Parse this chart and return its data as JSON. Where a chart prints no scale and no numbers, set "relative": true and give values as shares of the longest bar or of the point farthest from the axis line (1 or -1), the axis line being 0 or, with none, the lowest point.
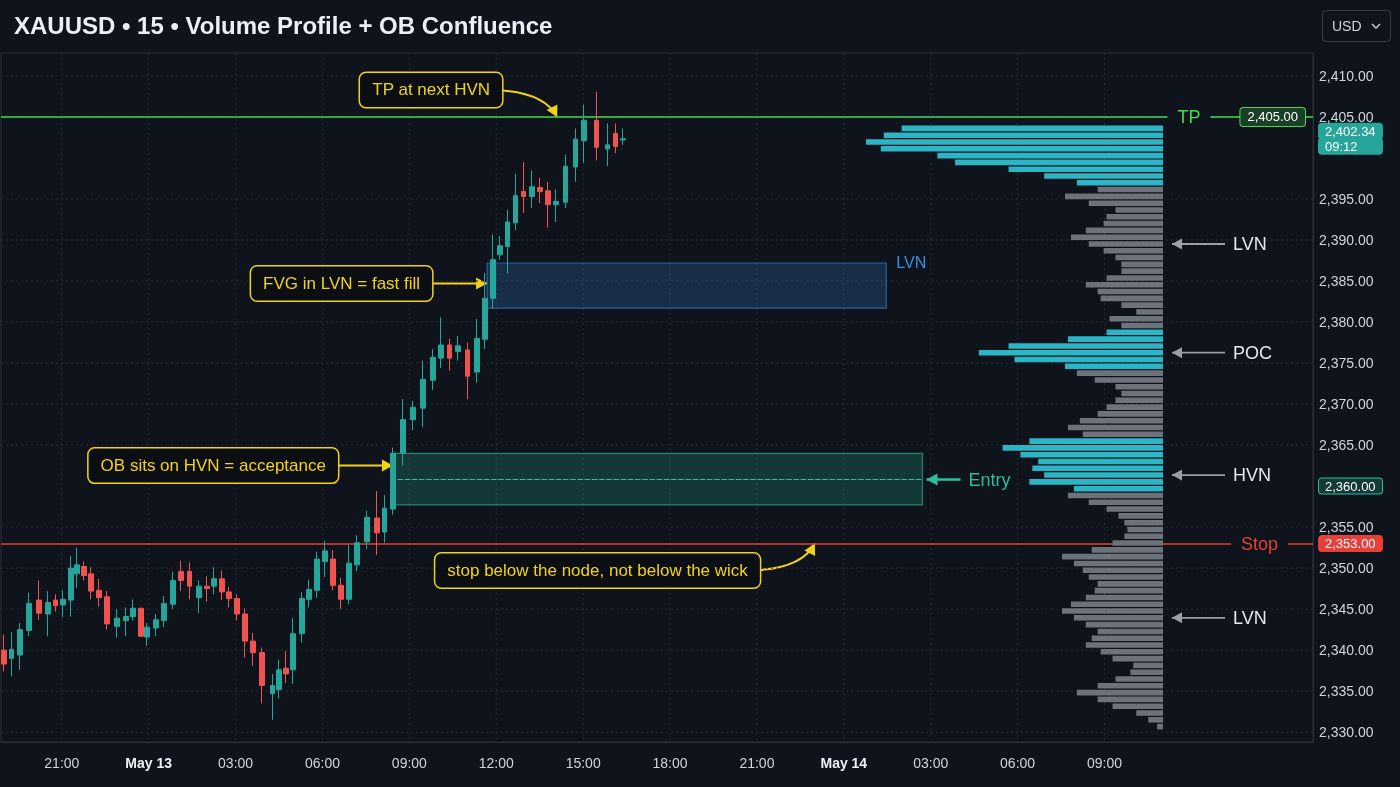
{
  "chart_data": [
    {
      "type": "candlestick",
      "title": "XAUUSD • 15 • Volume Profile + OB Confluence",
      "ylabel": "USD",
      "x": [
        "--05-12T19:00",
        "--05-12T19:16",
        "--05-12T19:33",
        "--05-12T19:52",
        "--05-12T20:13",
        "--05-12T20:31",
        "--05-12T20:47",
        "--05-12T21:02",
        "--05-12T21:19",
        "--05-12T21:31",
        "--05-12T21:46",
        "--05-12T22:00",
        "--05-12T22:17",
        "--05-12T22:34",
        "--05-12T22:54",
        "--05-12T23:13",
        "--05-12T23:27",
        "--05-12T23:44",
        "--05-12T23:56",
        "--05-13T00:15",
        "--05-13T00:32",
        "--05-13T00:50",
        "--05-13T01:07",
        "--05-13T01:25",
        "--05-13T01:44",
        "--05-13T02:01",
        "--05-13T02:15",
        "--05-13T02:32",
        "--05-13T02:46",
        "--05-13T03:03",
        "--05-13T03:19",
        "--05-13T03:36",
        "--05-13T03:55",
        "--05-13T04:16",
        "--05-13T04:30",
        "--05-13T04:44",
        "--05-13T04:59",
        "--05-13T05:18",
        "--05-13T05:32",
        "--05-13T05:49",
        "--05-13T06:05",
        "--05-13T06:22",
        "--05-13T06:38",
        "--05-13T06:55",
        "--05-13T07:12",
        "--05-13T07:32",
        "--05-13T07:53",
        "--05-13T08:08",
        "--05-13T08:26",
        "--05-13T08:47",
        "--05-13T09:08",
        "--05-13T09:28",
        "--05-13T09:49",
        "--05-13T10:06",
        "--05-13T10:23",
        "--05-13T10:41",
        "--05-13T11:00",
        "--05-13T11:20",
        "--05-13T11:37",
        "--05-13T11:53",
        "--05-13T12:08",
        "--05-13T12:23",
        "--05-13T12:40",
        "--05-13T12:56",
        "--05-13T13:14",
        "--05-13T13:31",
        "--05-13T13:47",
        "--05-13T14:04",
        "--05-13T14:23",
        "--05-13T14:44",
        "--05-13T15:02",
        "--05-13T15:28",
        "--05-13T15:50",
        "--05-13T16:07",
        "--05-13T16:23"
      ],
      "ohlc": [
        [
          2340.0,
          2341.9,
          2337.4,
          2338.3
        ],
        [
          2339.0,
          2342.2,
          2336.8,
          2340.1
        ],
        [
          2339.4,
          2343.3,
          2337.6,
          2342.5
        ],
        [
          2342.4,
          2347.0,
          2341.7,
          2345.7
        ],
        [
          2346.1,
          2348.5,
          2343.7,
          2344.5
        ],
        [
          2344.4,
          2347.2,
          2341.7,
          2345.8
        ],
        [
          2346.1,
          2346.8,
          2344.7,
          2345.4
        ],
        [
          2345.5,
          2347.3,
          2344.0,
          2346.2
        ],
        [
          2346.1,
          2351.5,
          2344.1,
          2350.0
        ],
        [
          2349.3,
          2352.5,
          2347.6,
          2350.4
        ],
        [
          2350.2,
          2350.8,
          2348.5,
          2349.1
        ],
        [
          2349.3,
          2350.1,
          2346.2,
          2347.2
        ],
        [
          2347.3,
          2348.7,
          2345.3,
          2346.4
        ],
        [
          2346.5,
          2347.2,
          2342.5,
          2343.2
        ],
        [
          2342.9,
          2345.0,
          2341.5,
          2343.9
        ],
        [
          2343.6,
          2345.2,
          2341.7,
          2344.1
        ],
        [
          2344.1,
          2346.2,
          2343.6,
          2345.1
        ],
        [
          2345.1,
          2345.2,
          2341.6,
          2341.7
        ],
        [
          2341.6,
          2343.3,
          2340.5,
          2342.8
        ],
        [
          2342.7,
          2344.4,
          2341.7,
          2343.7
        ],
        [
          2343.6,
          2346.6,
          2342.8,
          2345.7
        ],
        [
          2345.6,
          2349.6,
          2345.0,
          2348.5
        ],
        [
          2349.6,
          2350.9,
          2347.2,
          2348.5
        ],
        [
          2349.6,
          2350.7,
          2346.2,
          2347.8
        ],
        [
          2346.4,
          2348.5,
          2344.5,
          2347.8
        ],
        [
          2347.8,
          2349.0,
          2345.9,
          2347.5
        ],
        [
          2347.8,
          2350.1,
          2346.8,
          2348.7
        ],
        [
          2348.7,
          2349.7,
          2346.1,
          2347.1
        ],
        [
          2347.1,
          2347.7,
          2345.2,
          2346.3
        ],
        [
          2346.3,
          2346.8,
          2343.6,
          2344.4
        ],
        [
          2344.4,
          2345.1,
          2339.1,
          2341.1
        ],
        [
          2341.1,
          2342.1,
          2338.1,
          2339.7
        ],
        [
          2339.7,
          2340.3,
          2333.5,
          2335.7
        ],
        [
          2334.7,
          2337.1,
          2331.5,
          2335.7
        ],
        [
          2335.2,
          2338.8,
          2334.1,
          2337.6
        ],
        [
          2337.8,
          2339.9,
          2336.0,
          2337.1
        ],
        [
          2337.6,
          2343.9,
          2335.9,
          2342.0
        ],
        [
          2342.0,
          2347.1,
          2340.9,
          2346.3
        ],
        [
          2346.2,
          2348.6,
          2345.2,
          2347.4
        ],
        [
          2347.3,
          2352.0,
          2346.4,
          2351.1
        ],
        [
          2350.8,
          2353.3,
          2348.9,
          2352.1
        ],
        [
          2351.1,
          2352.2,
          2347.3,
          2347.9
        ],
        [
          2347.9,
          2348.8,
          2345.0,
          2346.2
        ],
        [
          2346.2,
          2352.8,
          2345.6,
          2350.6
        ],
        [
          2350.4,
          2354.0,
          2349.6,
          2353.1
        ],
        [
          2353.2,
          2357.0,
          2352.3,
          2356.2
        ],
        [
          2356.1,
          2359.4,
          2351.6,
          2354.3
        ],
        [
          2354.4,
          2358.9,
          2353.1,
          2357.3
        ],
        [
          2357.2,
          2364.7,
          2356.5,
          2364.0
        ],
        [
          2364.0,
          2370.6,
          2362.5,
          2368.1
        ],
        [
          2368.1,
          2370.4,
          2366.8,
          2369.6
        ],
        [
          2369.5,
          2375.3,
          2367.2,
          2373.0
        ],
        [
          2372.9,
          2376.7,
          2371.7,
          2375.7
        ],
        [
          2375.6,
          2380.6,
          2374.4,
          2377.2
        ],
        [
          2377.2,
          2378.0,
          2374.1,
          2375.6
        ],
        [
          2376.4,
          2378.3,
          2375.3,
          2377.1
        ],
        [
          2376.6,
          2377.5,
          2370.6,
          2373.4
        ],
        [
          2373.9,
          2380.4,
          2372.6,
          2378.0
        ],
        [
          2377.9,
          2386.0,
          2376.7,
          2382.9
        ],
        [
          2382.9,
          2390.7,
          2381.6,
          2387.6
        ],
        [
          2388.2,
          2390.5,
          2387.6,
          2389.3
        ],
        [
          2389.2,
          2393.7,
          2385.9,
          2392.2
        ],
        [
          2392.1,
          2398.1,
          2391.2,
          2395.4
        ],
        [
          2395.9,
          2399.5,
          2393.3,
          2395.3
        ],
        [
          2395.3,
          2398.5,
          2393.9,
          2396.5
        ],
        [
          2396.4,
          2397.6,
          2394.5,
          2395.9
        ],
        [
          2396.0,
          2397.1,
          2391.5,
          2394.3
        ],
        [
          2394.3,
          2396.2,
          2392.2,
          2394.7
        ],
        [
          2394.6,
          2400.4,
          2393.9,
          2399.0
        ],
        [
          2398.9,
          2403.6,
          2397.1,
          2402.3
        ],
        [
          2402.1,
          2406.5,
          2399.4,
          2404.6
        ],
        [
          2404.6,
          2408.1,
          2399.7,
          2401.3
        ],
        [
          2401.1,
          2404.2,
          2399.0,
          2401.6
        ],
        [
          2403.0,
          2404.2,
          2400.6,
          2401.4
        ],
        [
          2402.2,
          2403.6,
          2401.6,
          2402.34
        ]
      ],
      "colors": [
        "#ef5350",
        "#26a69a",
        "#26a69a",
        "#26a69a",
        "#ef5350",
        "#26a69a",
        "#ef5350",
        "#26a69a",
        "#26a69a",
        "#26a69a",
        "#ef5350",
        "#ef5350",
        "#ef5350",
        "#ef5350",
        "#26a69a",
        "#26a69a",
        "#26a69a",
        "#ef5350",
        "#26a69a",
        "#26a69a",
        "#26a69a",
        "#26a69a",
        "#ef5350",
        "#ef5350",
        "#26a69a",
        "#ef5350",
        "#26a69a",
        "#ef5350",
        "#ef5350",
        "#ef5350",
        "#ef5350",
        "#ef5350",
        "#ef5350",
        "#26a69a",
        "#26a69a",
        "#ef5350",
        "#26a69a",
        "#26a69a",
        "#26a69a",
        "#26a69a",
        "#26a69a",
        "#ef5350",
        "#ef5350",
        "#26a69a",
        "#26a69a",
        "#26a69a",
        "#ef5350",
        "#26a69a",
        "#26a69a",
        "#26a69a",
        "#26a69a",
        "#26a69a",
        "#26a69a",
        "#26a69a",
        "#ef5350",
        "#26a69a",
        "#ef5350",
        "#26a69a",
        "#26a69a",
        "#26a69a",
        "#26a69a",
        "#26a69a",
        "#26a69a",
        "#ef5350",
        "#26a69a",
        "#ef5350",
        "#ef5350",
        "#26a69a",
        "#26a69a",
        "#26a69a",
        "#26a69a",
        "#ef5350",
        "#26a69a",
        "#ef5350",
        "#26a69a"
      ],
      "series": [
        {
          "type": "line",
          "name": "Entry",
          "x": [
            "--05-13T08:26",
            "--05-13T08:36",
            "--05-14T02:43"
          ],
          "values": [
            null,
            2360.8,
            2360.8
          ],
          "lower": [
            2357.7,
            2357.7,
            2357.7
          ],
          "upper": [
            2364.0,
            2364.0,
            2364.0
          ],
          "color": "#2bbf9e",
          "line_style": "dashed"
        },
        {
          "type": "line",
          "name": "LVN",
          "x": [
            "--05-13T11:41",
            "--05-14T01:28"
          ],
          "values": [
            null,
            null
          ],
          "lower": [
            2381.7,
            2381.7
          ],
          "upper": [
            2387.2,
            2387.2
          ],
          "color": "#3a8ee6"
        }
      ],
      "ref_lines": [
        {
          "axis": "y",
          "value": 2405,
          "label": "TP",
          "color": "#3fdc4f"
        },
        {
          "axis": "y",
          "value": 2353,
          "label": "Stop",
          "color": "#e5403a"
        }
      ],
      "annotations": [
        {
          "text": "TP at next HVN",
          "x": "--05-13T14:06",
          "y": 2405
        },
        {
          "text": "FVG in LVN = fast fill",
          "x": "--05-13T11:41",
          "y": 2384.7
        },
        {
          "text": "OB sits on HVN = acceptance",
          "x": "--05-13T08:26",
          "y": 2362.5
        },
        {
          "text": "stop below the node, not below the wick",
          "x": "--05-13T23:00",
          "y": 2353
        },
        {
          "text": "2,405.00",
          "y": 2405
        }
      ],
      "xlim": [
        "--05-12T18:54",
        "--05-14T16:12"
      ],
      "xticks": [
        {
          "value": "--05-12T21:00",
          "label": "21:00"
        },
        {
          "value": "--05-13T00:00",
          "label": "May 13"
        },
        {
          "value": "--05-13T03:00",
          "label": "03:00"
        },
        {
          "value": "--05-13T06:00",
          "label": "06:00"
        },
        {
          "value": "--05-13T09:00",
          "label": "09:00"
        },
        {
          "value": "--05-13T12:00",
          "label": "12:00"
        },
        {
          "value": "--05-13T15:00",
          "label": "15:00"
        },
        {
          "value": "--05-13T18:00",
          "label": "18:00"
        },
        {
          "value": "--05-13T21:00",
          "label": "21:00"
        },
        {
          "value": "--05-14T00:00",
          "label": "May 14"
        },
        {
          "value": "--05-14T03:00",
          "label": "03:00"
        },
        {
          "value": "--05-14T06:00",
          "label": "06:00"
        },
        {
          "value": "--05-14T09:00",
          "label": "09:00"
        }
      ],
      "ylim": [
        2328.8,
        2412.8
      ],
      "yticks": [
        {
          "value": 2330,
          "label": "2,330.00"
        },
        {
          "value": 2335,
          "label": "2,335.00"
        },
        {
          "value": 2340,
          "label": "2,340.00"
        },
        {
          "value": 2345,
          "label": "2,345.00"
        },
        {
          "value": 2350,
          "label": "2,350.00"
        },
        {
          "value": 2353,
          "label": "2,353.00"
        },
        {
          "value": 2355,
          "label": "2,355.00"
        },
        {
          "value": 2360,
          "label": "2,360.00"
        },
        {
          "value": 2365,
          "label": "2,365.00"
        },
        {
          "value": 2370,
          "label": "2,370.00"
        },
        {
          "value": 2375,
          "label": "2,375.00"
        },
        {
          "value": 2380,
          "label": "2,380.00"
        },
        {
          "value": 2385,
          "label": "2,385.00"
        },
        {
          "value": 2390,
          "label": "2,390.00"
        },
        {
          "value": 2395,
          "label": "2,395.00"
        },
        {
          "value": 2402.34,
          "label": "2,402.34\n09:12"
        },
        {
          "value": 2405,
          "label": "2,405.00"
        },
        {
          "value": 2410,
          "label": "2,410.00"
        }
      ],
      "grid": true
    },
    {
      "type": "bar",
      "orientation": "horizontal",
      "relative": true,
      "categories": [
        null,
        null,
        null,
        null,
        null,
        null,
        null,
        null,
        null,
        null,
        null,
        null,
        null,
        null,
        null,
        null,
        null,
        "LVN",
        null,
        null,
        null,
        null,
        null,
        null,
        null,
        null,
        null,
        null,
        null,
        null,
        null,
        null,
        null,
        "POC",
        null,
        null,
        null,
        null,
        null,
        null,
        null,
        null,
        null,
        null,
        null,
        null,
        null,
        null,
        null,
        null,
        null,
        "HVN",
        null,
        null,
        null,
        null,
        null,
        null,
        null,
        null,
        null,
        null,
        null,
        null,
        null,
        null,
        null,
        null,
        null,
        null,
        null,
        null,
        "LVN",
        null,
        null,
        null,
        null,
        null,
        null,
        null,
        null,
        null,
        null,
        null,
        null,
        null,
        null,
        null,
        null
      ],
      "values": [
        0.88,
        0.94,
        1.0,
        0.95,
        0.76,
        0.7,
        0.52,
        0.4,
        0.29,
        0.22,
        0.33,
        0.25,
        0.16,
        0.19,
        0.2,
        0.26,
        0.31,
        0.25,
        0.2,
        0.16,
        0.14,
        0.14,
        0.19,
        0.26,
        0.22,
        0.21,
        0.14,
        0.09,
        0.18,
        0.14,
        0.19,
        0.32,
        0.52,
        0.62,
        0.5,
        0.33,
        0.29,
        0.23,
        0.16,
        0.14,
        0.16,
        0.19,
        0.22,
        0.28,
        0.32,
        0.27,
        0.45,
        0.54,
        0.48,
        0.42,
        0.44,
        0.4,
        0.45,
        0.3,
        0.32,
        0.25,
        0.19,
        0.15,
        0.13,
        0.12,
        0.13,
        0.17,
        0.24,
        0.34,
        0.3,
        0.27,
        0.25,
        0.22,
        0.23,
        0.26,
        0.31,
        0.34,
        0.3,
        0.26,
        0.22,
        0.24,
        0.26,
        0.21,
        0.17,
        0.1,
        0.11,
        0.16,
        0.22,
        0.29,
        0.22,
        0.17,
        0.09,
        0.05,
        0.02
      ],
      "colors": [
        "#2bb5c5",
        "#2bb5c5",
        "#2bb5c5",
        "#2bb5c5",
        "#2bb5c5",
        "#2bb5c5",
        "#2bb5c5",
        "#2bb5c5",
        "#2bb5c5",
        "#6e727b",
        "#6e727b",
        "#6e727b",
        "#6e727b",
        "#6e727b",
        "#6e727b",
        "#6e727b",
        "#6e727b",
        "#6e727b",
        "#6e727b",
        "#6e727b",
        "#6e727b",
        "#6e727b",
        "#6e727b",
        "#6e727b",
        "#6e727b",
        "#6e727b",
        "#6e727b",
        "#6e727b",
        "#6e727b",
        "#6e727b",
        "#2bb5c5",
        "#2bb5c5",
        "#2bb5c5",
        "#2bb5c5",
        "#2bb5c5",
        "#2bb5c5",
        "#6e727b",
        "#6e727b",
        "#6e727b",
        "#6e727b",
        "#6e727b",
        "#6e727b",
        "#6e727b",
        "#6e727b",
        "#6e727b",
        "#6e727b",
        "#2bb5c5",
        "#2bb5c5",
        "#2bb5c5",
        "#2bb5c5",
        "#2bb5c5",
        "#2bb5c5",
        "#2bb5c5",
        "#2bb5c5",
        "#6e727b",
        "#6e727b",
        "#6e727b",
        "#6e727b",
        "#6e727b",
        "#6e727b",
        "#6e727b",
        "#6e727b",
        "#6e727b",
        "#6e727b",
        "#6e727b",
        "#6e727b",
        "#6e727b",
        "#6e727b",
        "#6e727b",
        "#6e727b",
        "#6e727b",
        "#6e727b",
        "#6e727b",
        "#6e727b",
        "#6e727b",
        "#6e727b",
        "#6e727b",
        "#6e727b",
        "#6e727b",
        "#6e727b",
        "#6e727b",
        "#6e727b",
        "#6e727b",
        "#6e727b",
        "#6e727b",
        "#6e727b",
        "#6e727b",
        "#6e727b",
        "#6e727b"
      ]
    }
  ]
}
